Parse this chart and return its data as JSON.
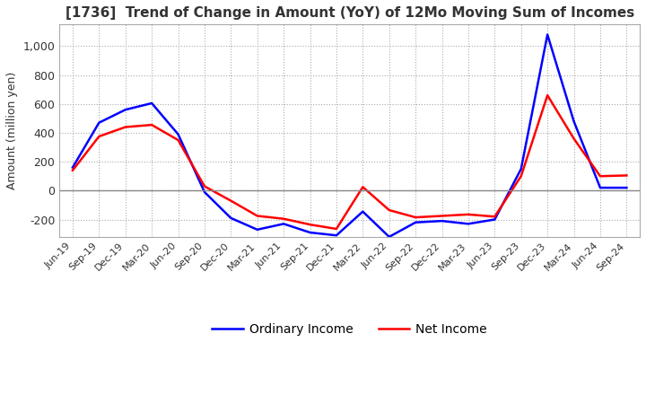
{
  "title": "[1736]  Trend of Change in Amount (YoY) of 12Mo Moving Sum of Incomes",
  "ylabel": "Amount (million yen)",
  "ylim": [
    -320,
    1150
  ],
  "yticks": [
    -200,
    0,
    200,
    400,
    600,
    800,
    1000
  ],
  "x_labels": [
    "Jun-19",
    "Sep-19",
    "Dec-19",
    "Mar-20",
    "Jun-20",
    "Sep-20",
    "Dec-20",
    "Mar-21",
    "Jun-21",
    "Sep-21",
    "Dec-21",
    "Mar-22",
    "Jun-22",
    "Sep-22",
    "Dec-22",
    "Mar-23",
    "Jun-23",
    "Sep-23",
    "Dec-23",
    "Mar-24",
    "Jun-24",
    "Sep-24"
  ],
  "ordinary_income": [
    160,
    470,
    560,
    605,
    390,
    -10,
    -190,
    -270,
    -230,
    -290,
    -310,
    -145,
    -320,
    -220,
    -210,
    -230,
    -200,
    150,
    1080,
    480,
    20,
    20
  ],
  "net_income": [
    140,
    375,
    440,
    455,
    350,
    30,
    -70,
    -175,
    -195,
    -235,
    -265,
    25,
    -135,
    -185,
    -175,
    -165,
    -180,
    100,
    660,
    360,
    100,
    105
  ],
  "ordinary_color": "#0000ff",
  "net_color": "#ff0000",
  "grid_color": "#aaaaaa",
  "background_color": "#ffffff",
  "title_color": "#333333",
  "zero_line_color": "#888888",
  "legend_labels": [
    "Ordinary Income",
    "Net Income"
  ]
}
